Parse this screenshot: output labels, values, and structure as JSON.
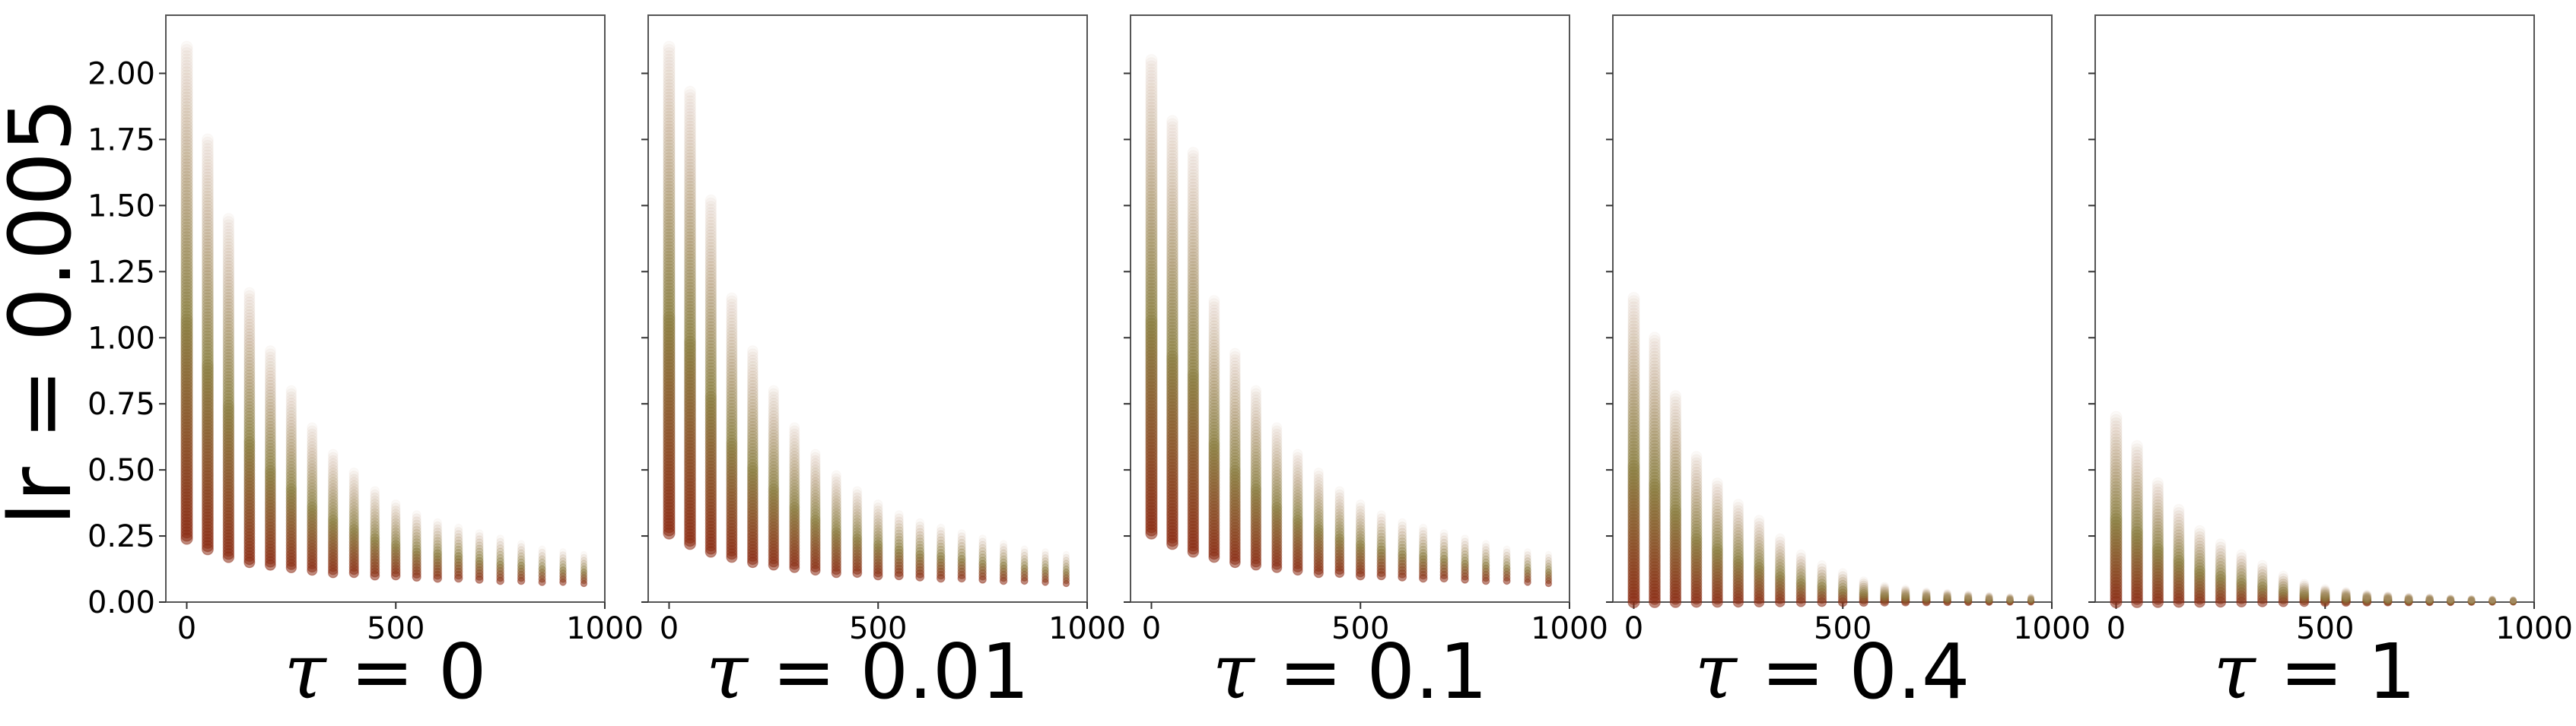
{
  "figure": {
    "row_label": "lr = 0.005"
  },
  "chart_data": [
    {
      "type": "scatter",
      "title": "",
      "xlabel_symbol": "τ",
      "xlabel": " = 0",
      "ylabel": "lr = 0.005",
      "xlim": [
        -50,
        1000
      ],
      "ylim": [
        0,
        2.22
      ],
      "xticks": [
        0,
        500,
        1000
      ],
      "yticks": [
        0.0,
        0.25,
        0.5,
        0.75,
        1.0,
        1.25,
        1.5,
        1.75,
        2.0
      ],
      "ytick_labels": [
        "0.00",
        "0.25",
        "0.50",
        "0.75",
        "1.00",
        "1.25",
        "1.50",
        "1.75",
        "2.00"
      ],
      "show_ytick_labels": true,
      "grid": false,
      "colors": {
        "high": "#c8a690",
        "mid": "#8a7e40",
        "low": "#8b2a12"
      },
      "x": [
        0,
        50,
        100,
        150,
        200,
        250,
        300,
        350,
        400,
        450,
        500,
        550,
        600,
        650,
        700,
        750,
        800,
        850,
        900,
        950
      ],
      "y_min": [
        0.24,
        0.2,
        0.17,
        0.15,
        0.14,
        0.13,
        0.12,
        0.11,
        0.11,
        0.1,
        0.1,
        0.095,
        0.09,
        0.09,
        0.085,
        0.08,
        0.08,
        0.075,
        0.075,
        0.07
      ],
      "y_max": [
        2.1,
        1.75,
        1.45,
        1.17,
        0.95,
        0.8,
        0.66,
        0.56,
        0.49,
        0.42,
        0.37,
        0.33,
        0.3,
        0.28,
        0.26,
        0.24,
        0.22,
        0.2,
        0.19,
        0.18
      ]
    },
    {
      "type": "scatter",
      "title": "",
      "xlabel_symbol": "τ",
      "xlabel": " = 0.01",
      "xlim": [
        -50,
        1000
      ],
      "ylim": [
        0,
        2.22
      ],
      "xticks": [
        0,
        500,
        1000
      ],
      "yticks": [
        0.0,
        0.25,
        0.5,
        0.75,
        1.0,
        1.25,
        1.5,
        1.75,
        2.0
      ],
      "show_ytick_labels": false,
      "grid": false,
      "x": [
        0,
        50,
        100,
        150,
        200,
        250,
        300,
        350,
        400,
        450,
        500,
        550,
        600,
        650,
        700,
        750,
        800,
        850,
        900,
        950
      ],
      "y_min": [
        0.26,
        0.22,
        0.19,
        0.17,
        0.15,
        0.14,
        0.13,
        0.12,
        0.11,
        0.11,
        0.1,
        0.1,
        0.095,
        0.09,
        0.09,
        0.085,
        0.08,
        0.08,
        0.075,
        0.07
      ],
      "y_max": [
        2.1,
        1.93,
        1.52,
        1.15,
        0.95,
        0.8,
        0.66,
        0.56,
        0.48,
        0.42,
        0.37,
        0.33,
        0.3,
        0.28,
        0.26,
        0.24,
        0.22,
        0.2,
        0.19,
        0.18
      ]
    },
    {
      "type": "scatter",
      "title": "",
      "xlabel_symbol": "τ",
      "xlabel": " = 0.1",
      "xlim": [
        -50,
        1000
      ],
      "ylim": [
        0,
        2.22
      ],
      "xticks": [
        0,
        500,
        1000
      ],
      "yticks": [
        0.0,
        0.25,
        0.5,
        0.75,
        1.0,
        1.25,
        1.5,
        1.75,
        2.0
      ],
      "show_ytick_labels": false,
      "grid": false,
      "x": [
        0,
        50,
        100,
        150,
        200,
        250,
        300,
        350,
        400,
        450,
        500,
        550,
        600,
        650,
        700,
        750,
        800,
        850,
        900,
        950
      ],
      "y_min": [
        0.26,
        0.22,
        0.19,
        0.17,
        0.15,
        0.14,
        0.13,
        0.12,
        0.11,
        0.11,
        0.1,
        0.1,
        0.095,
        0.09,
        0.09,
        0.085,
        0.08,
        0.08,
        0.075,
        0.07
      ],
      "y_max": [
        2.05,
        1.82,
        1.7,
        1.14,
        0.94,
        0.8,
        0.66,
        0.56,
        0.49,
        0.42,
        0.37,
        0.33,
        0.3,
        0.28,
        0.26,
        0.24,
        0.22,
        0.2,
        0.19,
        0.18
      ]
    },
    {
      "type": "scatter",
      "title": "",
      "xlabel_symbol": "τ",
      "xlabel": " = 0.4",
      "xlim": [
        -50,
        1000
      ],
      "ylim": [
        0,
        2.22
      ],
      "xticks": [
        0,
        500,
        1000
      ],
      "yticks": [
        0.0,
        0.25,
        0.5,
        0.75,
        1.0,
        1.25,
        1.5,
        1.75,
        2.0
      ],
      "show_ytick_labels": false,
      "grid": false,
      "x": [
        0,
        50,
        100,
        150,
        200,
        250,
        300,
        350,
        400,
        450,
        500,
        550,
        600,
        650,
        700,
        750,
        800,
        850,
        900,
        950
      ],
      "y_min": [
        0.0,
        0.0,
        0.0,
        0.0,
        0.0,
        0.0,
        0.0,
        0.0,
        0.0,
        0.0,
        0.0,
        0.0,
        0.0,
        0.0,
        0.0,
        0.0,
        0.0,
        0.0,
        0.0,
        0.0
      ],
      "y_max": [
        1.15,
        1.0,
        0.78,
        0.55,
        0.45,
        0.37,
        0.31,
        0.24,
        0.18,
        0.14,
        0.11,
        0.08,
        0.06,
        0.05,
        0.04,
        0.035,
        0.03,
        0.025,
        0.02,
        0.02
      ]
    },
    {
      "type": "scatter",
      "title": "",
      "xlabel_symbol": "τ",
      "xlabel": " = 1",
      "xlim": [
        -50,
        1000
      ],
      "ylim": [
        0,
        2.22
      ],
      "xticks": [
        0,
        500,
        1000
      ],
      "yticks": [
        0.0,
        0.25,
        0.5,
        0.75,
        1.0,
        1.25,
        1.5,
        1.75,
        2.0
      ],
      "show_ytick_labels": false,
      "grid": false,
      "x": [
        0,
        50,
        100,
        150,
        200,
        250,
        300,
        350,
        400,
        450,
        500,
        550,
        600,
        650,
        700,
        750,
        800,
        850,
        900,
        950
      ],
      "y_min": [
        0.0,
        0.0,
        0.0,
        0.0,
        0.0,
        0.0,
        0.0,
        0.0,
        0.0,
        0.0,
        0.0,
        0.0,
        0.0,
        0.0,
        0.0,
        0.0,
        0.0,
        0.0,
        0.0,
        0.0
      ],
      "y_max": [
        0.7,
        0.59,
        0.45,
        0.35,
        0.27,
        0.22,
        0.18,
        0.14,
        0.1,
        0.07,
        0.05,
        0.04,
        0.03,
        0.025,
        0.02,
        0.018,
        0.015,
        0.013,
        0.012,
        0.01
      ]
    }
  ]
}
